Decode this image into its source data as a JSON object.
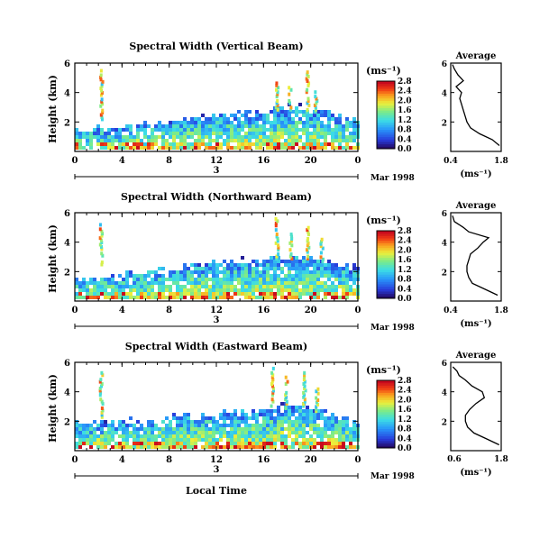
{
  "panels": [
    {
      "title": "Spectral Width (Vertical Beam)",
      "ylabel": "Height (km)",
      "cbar_unit": "(ms⁻¹)",
      "cbar_ticks": [
        "0.0",
        "0.4",
        "0.8",
        "1.2",
        "1.6",
        "2.0",
        "2.4",
        "2.8"
      ],
      "day_label": "3",
      "date_label": "Mar 1998",
      "avg_title": "Average",
      "avg_xticks": [
        "0.4",
        "1.8"
      ],
      "avg_xlabel": "(ms⁻¹)"
    },
    {
      "title": "Spectral Width (Northward Beam)",
      "ylabel": "Height (km)",
      "cbar_unit": "(ms⁻¹)",
      "cbar_ticks": [
        "0.0",
        "0.4",
        "0.8",
        "1.2",
        "1.6",
        "2.0",
        "2.4",
        "2.8"
      ],
      "day_label": "3",
      "date_label": "Mar 1998",
      "avg_title": "Average",
      "avg_xticks": [
        "0.4",
        "1.8"
      ],
      "avg_xlabel": "(ms⁻¹)"
    },
    {
      "title": "Spectral Width (Eastward Beam)",
      "ylabel": "Height (km)",
      "cbar_unit": "(ms⁻¹)",
      "cbar_ticks": [
        "0.0",
        "0.4",
        "0.8",
        "1.2",
        "1.6",
        "2.0",
        "2.4",
        "2.8"
      ],
      "day_label": "3",
      "date_label": "Mar 1998",
      "avg_title": "Average",
      "avg_xticks": [
        "0.6",
        "1.8"
      ],
      "avg_xlabel": "(ms⁻¹)"
    }
  ],
  "xlabel_bottom": "Local Time",
  "chart_data": [
    {
      "type": "heatmap",
      "title": "Spectral Width (Vertical Beam)",
      "xlabel": "",
      "ylabel": "Height (km)",
      "x_ticks": [
        "0",
        "4",
        "8",
        "12",
        "16",
        "20",
        "0"
      ],
      "y_ticks": [
        "2",
        "4",
        "6"
      ],
      "xlim": [
        0,
        24
      ],
      "ylim": [
        0,
        6
      ],
      "colorbar": {
        "label": "(ms⁻¹)",
        "range": [
          0.0,
          2.8
        ],
        "ticks": [
          0.0,
          0.4,
          0.8,
          1.2,
          1.6,
          2.0,
          2.4,
          2.8
        ]
      },
      "echo_top_km": [
        1.5,
        1.6,
        1.7,
        1.7,
        1.8,
        1.9,
        2.0,
        2.2,
        2.3,
        2.4,
        2.5,
        2.6,
        2.6,
        2.7,
        2.7,
        2.8,
        2.9,
        3.0,
        3.1,
        3.0,
        2.9,
        2.8,
        2.6,
        2.4
      ],
      "plumes": [
        {
          "x_hour": 2.3,
          "from_km": 2.3,
          "to_km": 5.8
        },
        {
          "x_hour": 17.2,
          "from_km": 2.8,
          "to_km": 4.8
        },
        {
          "x_hour": 18.3,
          "from_km": 2.8,
          "to_km": 4.6
        },
        {
          "x_hour": 19.8,
          "from_km": 2.8,
          "to_km": 5.8
        },
        {
          "x_hour": 20.5,
          "from_km": 2.8,
          "to_km": 4.3
        }
      ]
    },
    {
      "type": "line",
      "title": "Average",
      "xlabel": "(ms⁻¹)",
      "ylabel": "",
      "x_ticks": [
        "0.4",
        "1.8"
      ],
      "y_ticks": [
        "2",
        "4",
        "6"
      ],
      "xlim": [
        0.4,
        1.8
      ],
      "ylim": [
        0,
        6
      ],
      "series": [
        {
          "x": [
            1.75,
            1.55,
            1.2,
            0.95,
            0.85,
            0.8,
            0.75,
            0.7,
            0.65,
            0.7,
            0.55,
            0.75,
            0.6,
            0.5,
            0.45
          ],
          "y": [
            0.4,
            0.8,
            1.2,
            1.6,
            2.0,
            2.4,
            2.8,
            3.2,
            3.6,
            4.0,
            4.4,
            4.8,
            5.2,
            5.6,
            5.9
          ]
        }
      ]
    },
    {
      "type": "heatmap",
      "title": "Spectral Width (Northward Beam)",
      "xlabel": "",
      "ylabel": "Height (km)",
      "x_ticks": [
        "0",
        "4",
        "8",
        "12",
        "16",
        "20",
        "0"
      ],
      "y_ticks": [
        "2",
        "4",
        "6"
      ],
      "xlim": [
        0,
        24
      ],
      "ylim": [
        0,
        6
      ],
      "colorbar": {
        "label": "(ms⁻¹)",
        "range": [
          0.0,
          2.8
        ],
        "ticks": [
          0.0,
          0.4,
          0.8,
          1.2,
          1.6,
          2.0,
          2.4,
          2.8
        ]
      },
      "echo_top_km": [
        1.5,
        1.7,
        1.8,
        1.9,
        2.0,
        2.1,
        2.2,
        2.3,
        2.4,
        2.5,
        2.6,
        2.7,
        2.7,
        2.8,
        2.9,
        3.0,
        3.0,
        3.1,
        3.2,
        3.1,
        3.0,
        2.8,
        2.6,
        2.4
      ],
      "plumes": [
        {
          "x_hour": 2.3,
          "from_km": 2.6,
          "to_km": 5.4
        },
        {
          "x_hour": 17.2,
          "from_km": 3.0,
          "to_km": 5.8
        },
        {
          "x_hour": 18.4,
          "from_km": 3.0,
          "to_km": 4.8
        },
        {
          "x_hour": 19.8,
          "from_km": 3.0,
          "to_km": 5.2
        },
        {
          "x_hour": 21.0,
          "from_km": 2.8,
          "to_km": 4.4
        }
      ]
    },
    {
      "type": "line",
      "title": "Average",
      "xlabel": "(ms⁻¹)",
      "ylabel": "",
      "x_ticks": [
        "0.4",
        "1.8"
      ],
      "y_ticks": [
        "2",
        "4",
        "6"
      ],
      "xlim": [
        0.4,
        1.8
      ],
      "ylim": [
        0,
        6
      ],
      "series": [
        {
          "x": [
            1.7,
            1.35,
            1.0,
            0.9,
            0.85,
            0.85,
            0.9,
            0.95,
            1.15,
            1.3,
            1.45,
            0.9,
            0.75,
            0.5,
            0.45
          ],
          "y": [
            0.4,
            0.8,
            1.2,
            1.6,
            2.0,
            2.4,
            2.8,
            3.2,
            3.6,
            4.0,
            4.3,
            4.7,
            5.0,
            5.4,
            5.8
          ]
        }
      ]
    },
    {
      "type": "heatmap",
      "title": "Spectral Width (Eastward Beam)",
      "xlabel": "Local Time",
      "ylabel": "Height (km)",
      "x_ticks": [
        "0",
        "4",
        "8",
        "12",
        "16",
        "20",
        "0"
      ],
      "y_ticks": [
        "2",
        "4",
        "6"
      ],
      "xlim": [
        0,
        24
      ],
      "ylim": [
        0,
        6
      ],
      "colorbar": {
        "label": "(ms⁻¹)",
        "range": [
          0.0,
          2.8
        ],
        "ticks": [
          0.0,
          0.4,
          0.8,
          1.2,
          1.6,
          2.0,
          2.4,
          2.8
        ]
      },
      "echo_top_km": [
        2.0,
        2.0,
        2.0,
        2.1,
        2.1,
        2.2,
        2.3,
        2.4,
        2.4,
        2.5,
        2.5,
        2.6,
        2.7,
        2.7,
        2.8,
        2.9,
        3.0,
        3.2,
        3.3,
        3.2,
        3.0,
        2.8,
        2.4,
        2.2
      ],
      "plumes": [
        {
          "x_hour": 2.3,
          "from_km": 2.4,
          "to_km": 5.6
        },
        {
          "x_hour": 16.8,
          "from_km": 3.0,
          "to_km": 5.8
        },
        {
          "x_hour": 18.0,
          "from_km": 3.0,
          "to_km": 5.2
        },
        {
          "x_hour": 19.5,
          "from_km": 3.0,
          "to_km": 5.6
        },
        {
          "x_hour": 20.6,
          "from_km": 2.8,
          "to_km": 4.4
        }
      ]
    },
    {
      "type": "line",
      "title": "Average",
      "xlabel": "(ms⁻¹)",
      "ylabel": "",
      "x_ticks": [
        "0.6",
        "1.8"
      ],
      "y_ticks": [
        "2",
        "4",
        "6"
      ],
      "xlim": [
        0.6,
        1.8
      ],
      "ylim": [
        0,
        6
      ],
      "series": [
        {
          "x": [
            1.75,
            1.45,
            1.15,
            1.0,
            0.95,
            0.95,
            1.05,
            1.2,
            1.4,
            1.35,
            1.1,
            0.95,
            0.8,
            0.75,
            0.65
          ],
          "y": [
            0.4,
            0.8,
            1.2,
            1.6,
            2.0,
            2.4,
            2.8,
            3.2,
            3.6,
            4.0,
            4.4,
            4.8,
            5.1,
            5.4,
            5.7
          ]
        }
      ]
    }
  ]
}
